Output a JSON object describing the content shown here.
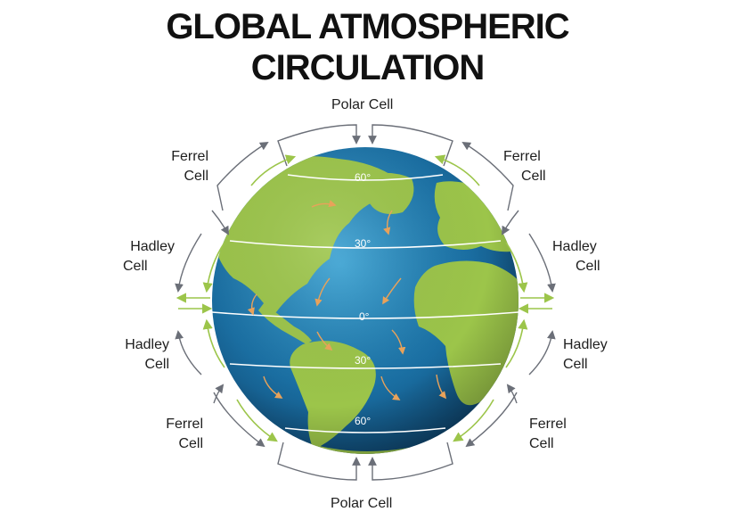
{
  "title": {
    "line1": "GLOBAL ATMOSPHERIC",
    "line2": "CIRCULATION"
  },
  "labels": {
    "polar_top": "Polar Cell",
    "polar_bottom": "Polar Cell",
    "ferrel_nw": [
      "Ferrel",
      "Cell"
    ],
    "ferrel_ne": [
      "Ferrel",
      "Cell"
    ],
    "hadley_nw": [
      "Hadley",
      "Cell"
    ],
    "hadley_ne": [
      "Hadley",
      "Cell"
    ],
    "hadley_sw": [
      "Hadley",
      "Cell"
    ],
    "hadley_se": [
      "Hadley",
      "Cell"
    ],
    "ferrel_sw": [
      "Ferrel",
      "Cell"
    ],
    "ferrel_se": [
      "Ferrel",
      "Cell"
    ]
  },
  "latitudes": {
    "n60": "60°",
    "n30": "30°",
    "eq": "0°",
    "s30": "30°",
    "s60": "60°"
  },
  "colors": {
    "ocean": "#1a6fa3",
    "land": "#9cc54a",
    "arrow_gray": "#6b6f78",
    "arrow_green": "#9cc54a",
    "title": "#111111"
  }
}
